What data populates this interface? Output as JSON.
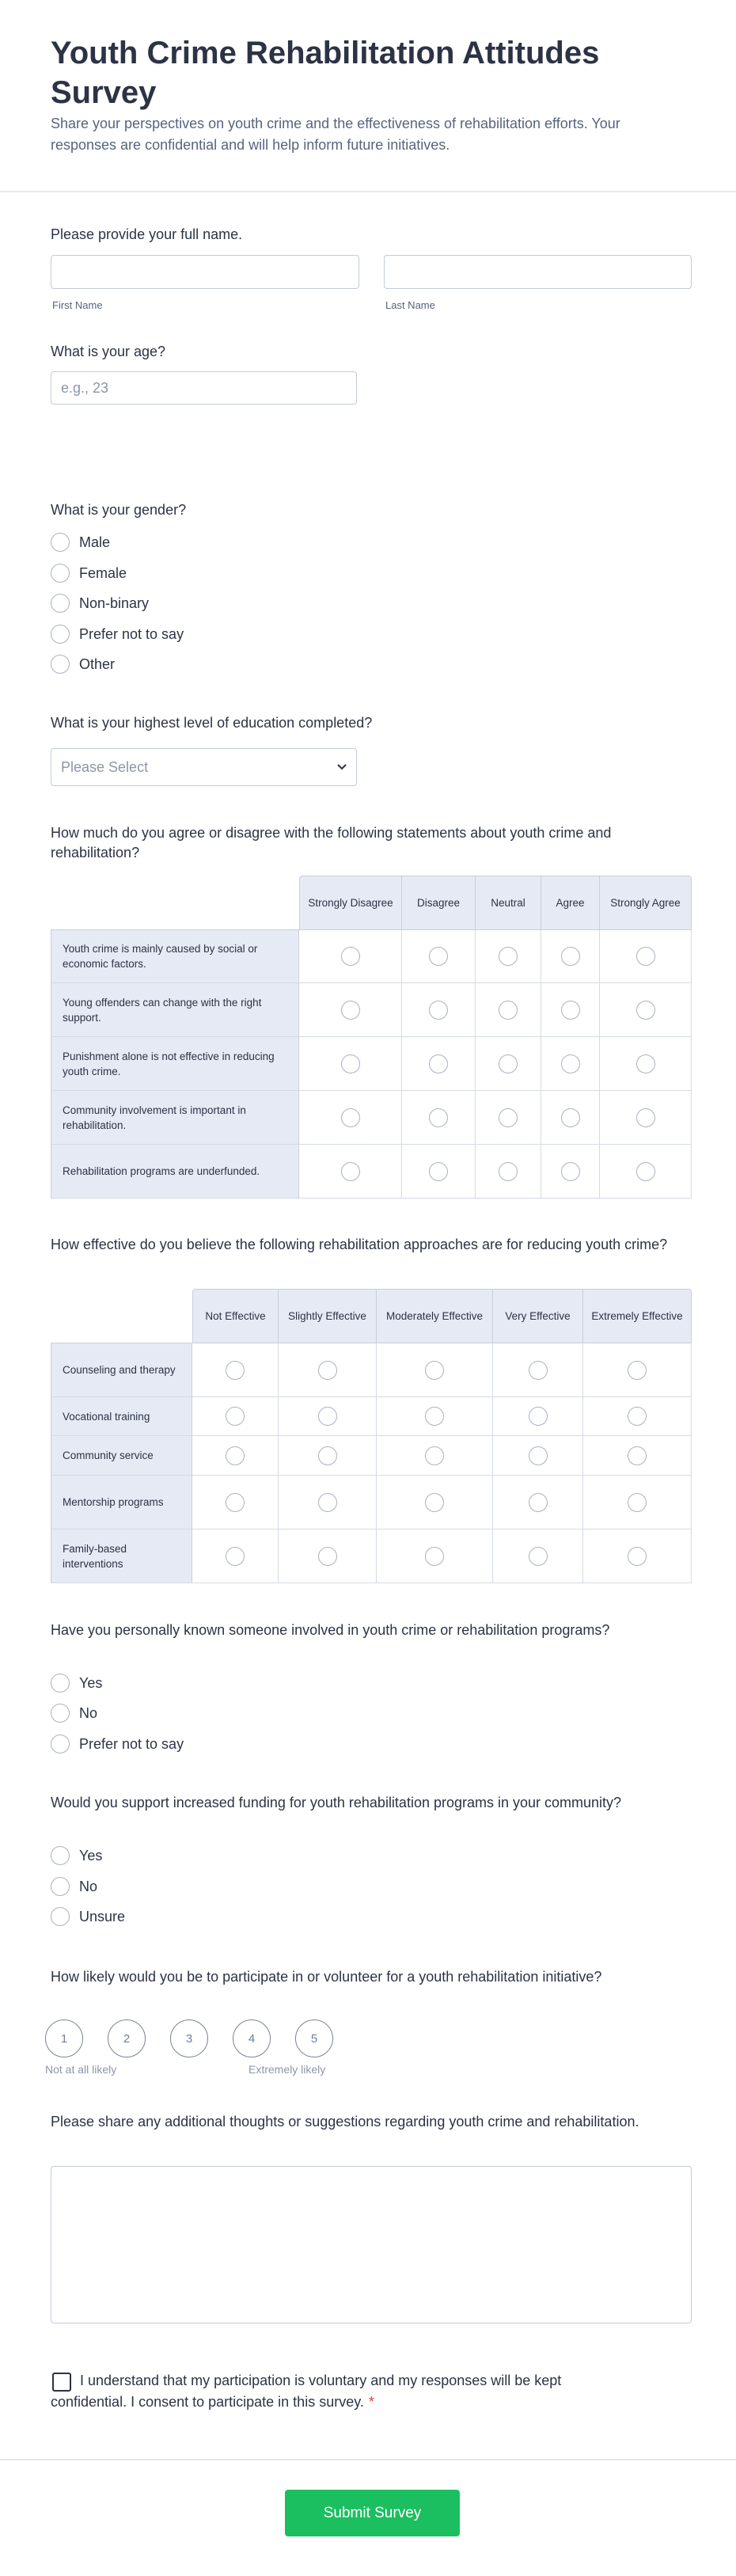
{
  "header": {
    "title": "Youth Crime Rehabilitation Attitudes Survey",
    "subtitle": "Share your perspectives on youth crime and the effectiveness of rehabilitation efforts. Your responses are confidential and will help inform future initiatives."
  },
  "name": {
    "question": "Please provide your full name.",
    "first_label": "First Name",
    "last_label": "Last Name",
    "first_value": "",
    "last_value": ""
  },
  "age": {
    "question": "What is your age?",
    "placeholder": "e.g., 23"
  },
  "gender": {
    "question": "What is your gender?",
    "options": [
      "Male",
      "Female",
      "Non-binary",
      "Prefer not to say",
      "Other"
    ]
  },
  "education": {
    "question": "What is your highest level of education completed?",
    "selected": "Please Select"
  },
  "agreement": {
    "question": "How much do you agree or disagree with the following statements about youth crime and rehabilitation?",
    "columns": [
      "Strongly Disagree",
      "Disagree",
      "Neutral",
      "Agree",
      "Strongly Agree"
    ],
    "rows": [
      "Youth crime is mainly caused by social or economic factors.",
      "Young offenders can change with the right support.",
      "Punishment alone is not effective in reducing youth crime.",
      "Community involvement is important in rehabilitation.",
      "Rehabilitation programs are underfunded."
    ]
  },
  "effectiveness": {
    "question": "How effective do you believe the following rehabilitation approaches are for reducing youth crime?",
    "columns": [
      "Not Effective",
      "Slightly Effective",
      "Moderately Effective",
      "Very Effective",
      "Extremely Effective"
    ],
    "rows": [
      "Counseling and therapy",
      "Vocational training",
      "Community service",
      "Mentorship programs",
      "Family-based interventions"
    ]
  },
  "known": {
    "question": "Have you personally known someone involved in youth crime or rehabilitation programs?",
    "options": [
      "Yes",
      "No",
      "Prefer not to say"
    ]
  },
  "funding": {
    "question": "Would you support increased funding for youth rehabilitation programs in your community?",
    "options": [
      "Yes",
      "No",
      "Unsure"
    ]
  },
  "likely": {
    "question": "How likely would you be to participate in or volunteer for a youth rehabilitation initiative?",
    "scale": [
      "1",
      "2",
      "3",
      "4",
      "5"
    ],
    "min_label": "Not at all likely",
    "max_label": "Extremely likely"
  },
  "thoughts": {
    "question": "Please share any additional thoughts or suggestions regarding youth crime and rehabilitation.",
    "value": ""
  },
  "consent": {
    "text": "I understand that my participation is voluntary and my responses will be kept confidential. I consent to participate in this survey.",
    "required_mark": "*"
  },
  "submit_label": "Submit Survey",
  "colors": {
    "accent": "#1bbf5f",
    "text": "#2c3345",
    "table_header": "#e6eaf4",
    "required": "#f23a3c"
  }
}
